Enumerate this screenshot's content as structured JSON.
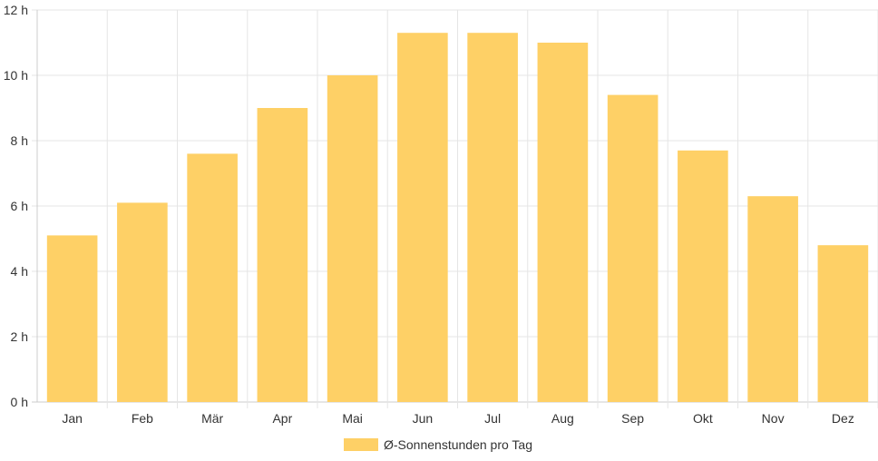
{
  "chart_data": {
    "type": "bar",
    "categories": [
      "Jan",
      "Feb",
      "Mär",
      "Apr",
      "Mai",
      "Jun",
      "Jul",
      "Aug",
      "Sep",
      "Okt",
      "Nov",
      "Dez"
    ],
    "series": [
      {
        "name": "Ø-Sonnenstunden pro Tag",
        "values": [
          5.1,
          6.1,
          7.6,
          9.0,
          10.0,
          11.3,
          11.3,
          11.0,
          9.4,
          7.7,
          6.3,
          4.8
        ],
        "color": "#fed066"
      }
    ],
    "ylim": [
      0,
      12
    ],
    "yticks": [
      "0 h",
      "2 h",
      "4 h",
      "6 h",
      "8 h",
      "10 h",
      "12 h"
    ],
    "grid": true,
    "legend_position": "bottom-center",
    "colors": {
      "grid": "#e5e5e5",
      "axis": "#cccccc",
      "text": "#333333"
    }
  }
}
